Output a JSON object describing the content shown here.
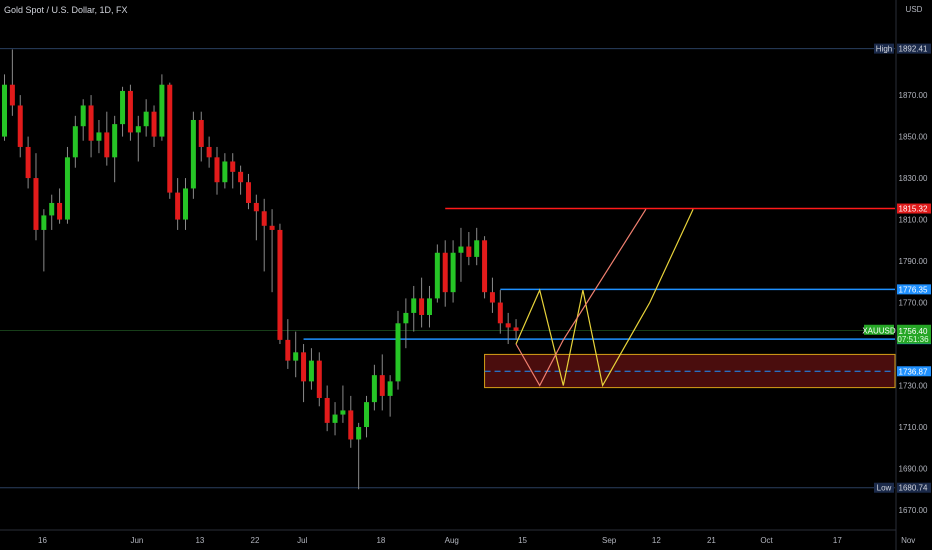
{
  "title": "Gold Spot / U.S. Dollar, 1D, FX",
  "currency": "USD",
  "colors": {
    "background": "#000000",
    "up": "#26c526",
    "down": "#e21b1b",
    "wick": "#8a8a8a",
    "red_level": "#ff1a1a",
    "blue_level": "#1e90ff",
    "zone_fill": "#4a0d0d",
    "zone_border": "#d4a017",
    "zone_mid": "#1e90ff",
    "path_yellow": "#e8d33a",
    "path_salmon": "#f08070",
    "price_line": "#2e7d32"
  },
  "chart_data": {
    "type": "candlestick",
    "symbol": "XAUUSD",
    "timeframe": "1D",
    "ylim": [
      1660,
      1898
    ],
    "y_ticks": [
      1870,
      1850,
      1830,
      1810,
      1790,
      1770,
      1730,
      1710,
      1690,
      1670
    ],
    "x_ticks": [
      {
        "label": "16",
        "bar": 0
      },
      {
        "label": "Jun",
        "bar": 12
      },
      {
        "label": "13",
        "bar": 20
      },
      {
        "label": "22",
        "bar": 27
      },
      {
        "label": "Jul",
        "bar": 33
      },
      {
        "label": "18",
        "bar": 43
      },
      {
        "label": "Aug",
        "bar": 52
      },
      {
        "label": "15",
        "bar": 61
      },
      {
        "label": "Sep",
        "bar": 72
      },
      {
        "label": "12",
        "bar": 78
      },
      {
        "label": "21",
        "bar": 85
      },
      {
        "label": "Oct",
        "bar": 92
      },
      {
        "label": "17",
        "bar": 101
      },
      {
        "label": "Nov",
        "bar": 110
      }
    ],
    "candles": [
      [
        1850,
        1880,
        1848,
        1875
      ],
      [
        1875,
        1892,
        1860,
        1865
      ],
      [
        1865,
        1870,
        1840,
        1845
      ],
      [
        1845,
        1850,
        1825,
        1830
      ],
      [
        1830,
        1842,
        1800,
        1805
      ],
      [
        1805,
        1815,
        1785,
        1812
      ],
      [
        1812,
        1822,
        1805,
        1818
      ],
      [
        1818,
        1825,
        1808,
        1810
      ],
      [
        1810,
        1845,
        1808,
        1840
      ],
      [
        1840,
        1860,
        1835,
        1855
      ],
      [
        1855,
        1868,
        1848,
        1865
      ],
      [
        1865,
        1870,
        1840,
        1848
      ],
      [
        1848,
        1858,
        1842,
        1852
      ],
      [
        1852,
        1862,
        1836,
        1840
      ],
      [
        1840,
        1860,
        1828,
        1856
      ],
      [
        1856,
        1874,
        1850,
        1872
      ],
      [
        1872,
        1875,
        1848,
        1852
      ],
      [
        1852,
        1860,
        1838,
        1855
      ],
      [
        1855,
        1868,
        1850,
        1862
      ],
      [
        1862,
        1865,
        1845,
        1850
      ],
      [
        1850,
        1880,
        1848,
        1875
      ],
      [
        1875,
        1876,
        1820,
        1823
      ],
      [
        1823,
        1830,
        1805,
        1810
      ],
      [
        1810,
        1830,
        1805,
        1825
      ],
      [
        1825,
        1862,
        1820,
        1858
      ],
      [
        1858,
        1862,
        1838,
        1845
      ],
      [
        1845,
        1850,
        1835,
        1840
      ],
      [
        1840,
        1845,
        1822,
        1828
      ],
      [
        1828,
        1842,
        1825,
        1838
      ],
      [
        1838,
        1842,
        1825,
        1833
      ],
      [
        1833,
        1836,
        1822,
        1828
      ],
      [
        1828,
        1832,
        1815,
        1818
      ],
      [
        1818,
        1822,
        1800,
        1814
      ],
      [
        1814,
        1820,
        1785,
        1807
      ],
      [
        1807,
        1815,
        1775,
        1805
      ],
      [
        1805,
        1808,
        1750,
        1752
      ],
      [
        1752,
        1762,
        1738,
        1742
      ],
      [
        1742,
        1756,
        1734,
        1746
      ],
      [
        1746,
        1750,
        1722,
        1732
      ],
      [
        1732,
        1748,
        1728,
        1742
      ],
      [
        1742,
        1746,
        1720,
        1724
      ],
      [
        1724,
        1730,
        1708,
        1712
      ],
      [
        1712,
        1722,
        1706,
        1716
      ],
      [
        1716,
        1730,
        1712,
        1718
      ],
      [
        1718,
        1725,
        1700,
        1704
      ],
      [
        1704,
        1712,
        1680,
        1710
      ],
      [
        1710,
        1725,
        1705,
        1722
      ],
      [
        1722,
        1740,
        1718,
        1735
      ],
      [
        1735,
        1745,
        1718,
        1725
      ],
      [
        1725,
        1735,
        1715,
        1732
      ],
      [
        1732,
        1766,
        1728,
        1760
      ],
      [
        1760,
        1772,
        1748,
        1765
      ],
      [
        1765,
        1778,
        1756,
        1772
      ],
      [
        1772,
        1782,
        1758,
        1764
      ],
      [
        1764,
        1778,
        1758,
        1772
      ],
      [
        1772,
        1798,
        1770,
        1794
      ],
      [
        1794,
        1800,
        1768,
        1775
      ],
      [
        1775,
        1800,
        1770,
        1794
      ],
      [
        1794,
        1806,
        1780,
        1797
      ],
      [
        1797,
        1804,
        1788,
        1792
      ],
      [
        1792,
        1806,
        1788,
        1800
      ],
      [
        1800,
        1802,
        1772,
        1775
      ],
      [
        1775,
        1782,
        1765,
        1770
      ],
      [
        1770,
        1776,
        1755,
        1760
      ],
      [
        1760,
        1765,
        1750,
        1758
      ],
      [
        1758,
        1762,
        1752,
        1756.4
      ]
    ],
    "levels": [
      {
        "name": "resistance-1815",
        "value": 1815.32,
        "start_bar": 56,
        "end_bar": 113
      },
      {
        "name": "level-1776",
        "value": 1776.35,
        "start_bar": 63,
        "end_bar": 113
      },
      {
        "name": "level-1752",
        "value": 1752.36,
        "start_bar": 38,
        "end_bar": 113
      }
    ],
    "zone": {
      "top": 1745,
      "bottom": 1729,
      "mid": 1736.87,
      "start_bar": 61,
      "end_bar": 113
    },
    "projections": [
      {
        "name": "projection-path-yellow",
        "color_key": "path_yellow",
        "points": [
          [
            65,
            1750
          ],
          [
            68,
            1776
          ],
          [
            71,
            1730
          ],
          [
            73.5,
            1776
          ],
          [
            76,
            1730
          ],
          [
            82,
            1770
          ],
          [
            87.5,
            1815
          ]
        ]
      },
      {
        "name": "projection-path-salmon",
        "color_key": "path_salmon",
        "points": [
          [
            65,
            1750
          ],
          [
            68,
            1730
          ],
          [
            71,
            1752
          ],
          [
            81.5,
            1815
          ]
        ]
      }
    ],
    "range_markers": {
      "high": {
        "label": "High",
        "value": 1892.41
      },
      "low": {
        "label": "Low",
        "value": 1680.74
      }
    },
    "price_tags": [
      {
        "text": "1892.41",
        "value": 1892.41,
        "bg": "#1b2a4a",
        "fg": "#d1d4dc",
        "type": "high"
      },
      {
        "text": "1815.32",
        "value": 1815.32,
        "bg": "#e21b1b",
        "fg": "#ffffff",
        "type": "level"
      },
      {
        "text": "1776.35",
        "value": 1776.35,
        "bg": "#1e90ff",
        "fg": "#ffffff",
        "type": "level"
      },
      {
        "text": "1752.36",
        "value": 1752.36,
        "bg": "#1e90ff",
        "fg": "#ffffff",
        "type": "level"
      },
      {
        "text": "1736.87",
        "value": 1736.87,
        "bg": "#1e90ff",
        "fg": "#ffffff",
        "type": "level"
      },
      {
        "text": "1680.74",
        "value": 1680.74,
        "bg": "#1b2a4a",
        "fg": "#d1d4dc",
        "type": "low"
      }
    ],
    "current": {
      "symbol": "XAUUSD",
      "price": "1756.40",
      "countdown": "07:51:36",
      "value": 1756.4
    }
  }
}
